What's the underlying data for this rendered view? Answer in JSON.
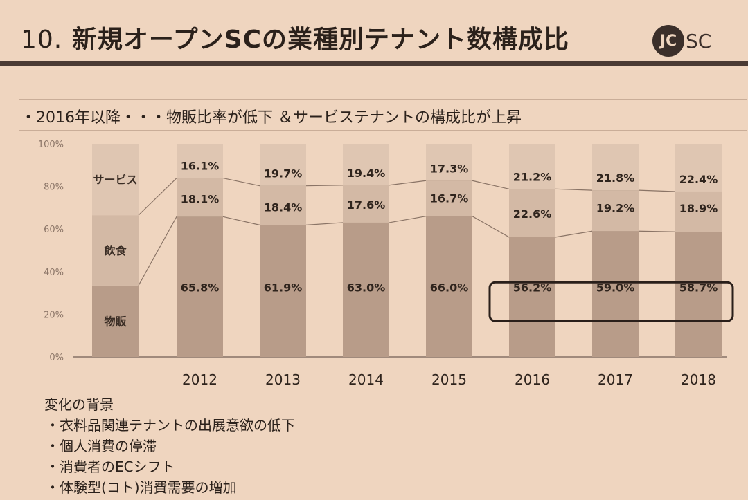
{
  "header": {
    "title_num": "10.",
    "title": "新規オープンSCの業種別テナント数構成比",
    "logo_text_a": "JC",
    "logo_text_b": "SC"
  },
  "subtitle": "・2016年以降・・・物販比率が低下 ＆サービステナントの構成比が上昇",
  "chart_data": {
    "type": "bar",
    "stacked": true,
    "categories": [
      "2012",
      "2013",
      "2014",
      "2015",
      "2016",
      "2017",
      "2018"
    ],
    "ylim": [
      0,
      100
    ],
    "yticks": [
      "0%",
      "20%",
      "40%",
      "60%",
      "80%",
      "100%"
    ],
    "legend_placement": "left (legend bar)",
    "series": [
      {
        "name": "物販",
        "values": [
          65.8,
          61.9,
          63.0,
          66.0,
          56.2,
          59.0,
          58.7
        ],
        "labels": [
          "65.8%",
          "61.9%",
          "63.0%",
          "66.0%",
          "56.2%",
          "59.0%",
          "58.7%"
        ],
        "color": "#b89c89"
      },
      {
        "name": "飲食",
        "values": [
          18.1,
          18.4,
          17.6,
          16.7,
          22.6,
          19.2,
          18.9
        ],
        "labels": [
          "18.1%",
          "18.4%",
          "17.6%",
          "16.7%",
          "22.6%",
          "19.2%",
          "18.9%"
        ],
        "color": "#d3b9a5"
      },
      {
        "name": "サービス",
        "values": [
          16.1,
          19.7,
          19.4,
          17.3,
          21.2,
          21.8,
          22.4
        ],
        "labels": [
          "16.1%",
          "19.7%",
          "19.4%",
          "17.3%",
          "21.2%",
          "21.8%",
          "22.4%"
        ],
        "color": "#dfc6b2"
      }
    ],
    "highlight": [
      "2016",
      "2017",
      "2018"
    ]
  },
  "notes": {
    "heading": "変化の背景",
    "items": [
      "・衣料品関連テナントの出展意欲の低下",
      "・個人消費の停滞",
      "・消費者のECシフト",
      "・体験型(コト)消費需要の増加"
    ]
  }
}
